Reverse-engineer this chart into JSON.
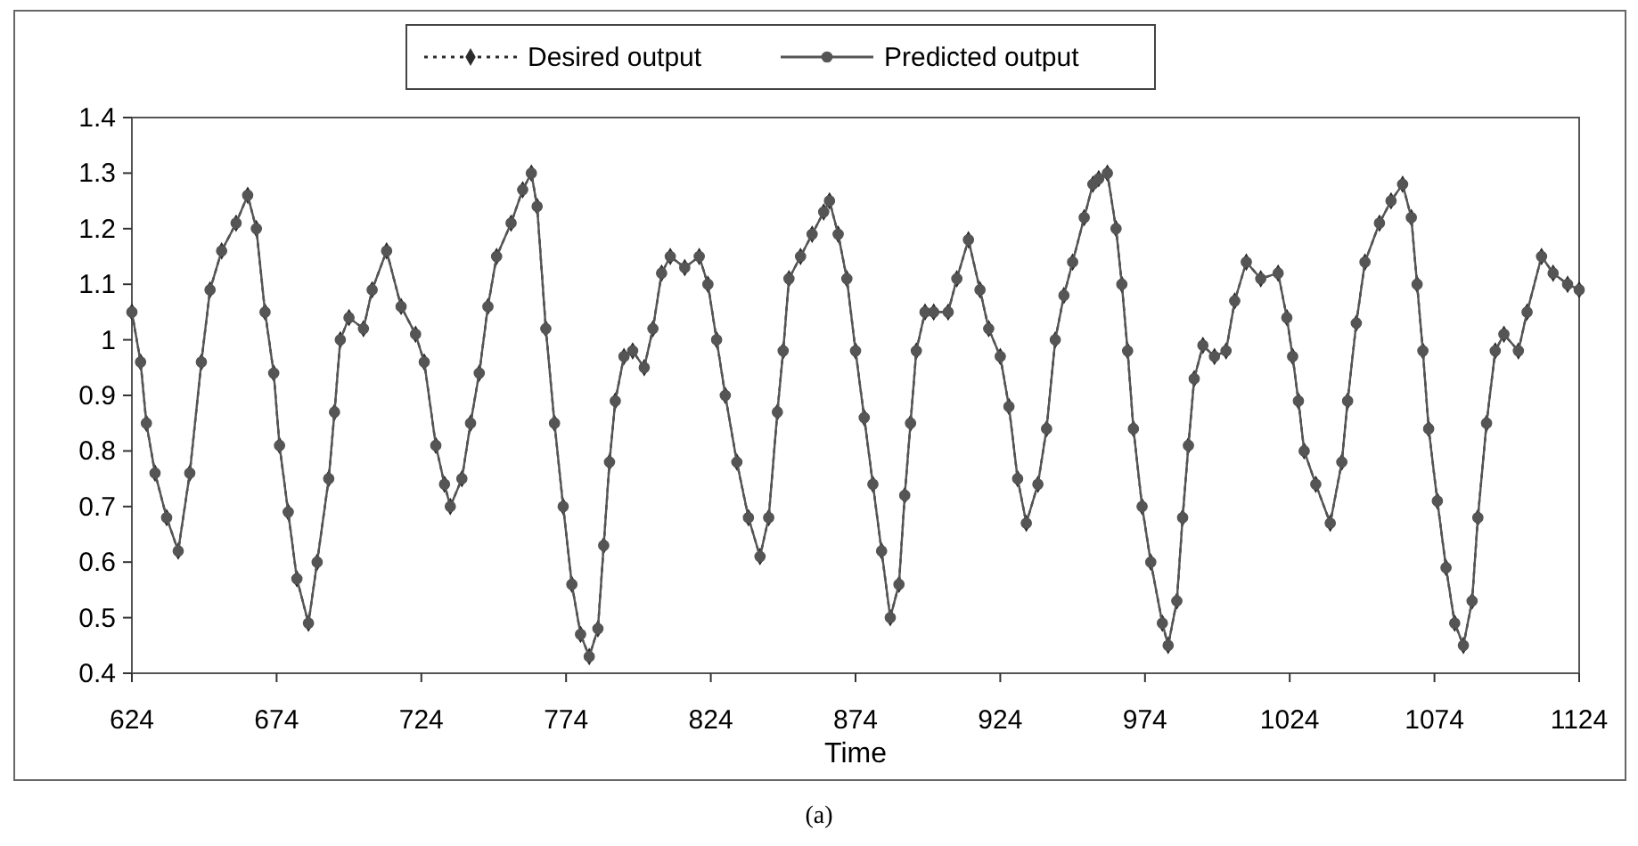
{
  "chart_data": {
    "type": "line",
    "xlabel": "Time",
    "annotations": [
      "(a)"
    ],
    "x": [
      624,
      627,
      629,
      632,
      636,
      640,
      644,
      648,
      651,
      655,
      660,
      664,
      667,
      670,
      673,
      675,
      678,
      681,
      685,
      688,
      692,
      694,
      696,
      699,
      704,
      707,
      712,
      717,
      722,
      725,
      729,
      732,
      734,
      738,
      741,
      744,
      747,
      750,
      755,
      759,
      762,
      764,
      767,
      770,
      773,
      776,
      779,
      782,
      785,
      787,
      789,
      791,
      794,
      797,
      801,
      804,
      807,
      810,
      815,
      820,
      823,
      826,
      829,
      833,
      837,
      841,
      844,
      847,
      849,
      851,
      855,
      859,
      863,
      865,
      868,
      871,
      874,
      877,
      880,
      883,
      886,
      889,
      891,
      893,
      895,
      898,
      901,
      906,
      909,
      913,
      917,
      920,
      924,
      927,
      930,
      933,
      937,
      940,
      943,
      946,
      949,
      953,
      956,
      958,
      961,
      964,
      966,
      968,
      970,
      973,
      976,
      980,
      982,
      985,
      987,
      989,
      991,
      994,
      998,
      1002,
      1005,
      1009,
      1014,
      1020,
      1023,
      1025,
      1027,
      1029,
      1033,
      1038,
      1042,
      1044,
      1047,
      1050,
      1055,
      1059,
      1063,
      1066,
      1068,
      1070,
      1072,
      1075,
      1078,
      1081,
      1084,
      1087,
      1089,
      1092,
      1095,
      1098,
      1103,
      1106,
      1111,
      1115,
      1120,
      1124
    ],
    "series": [
      {
        "name": "Desired output",
        "color": "#2b2b2b",
        "line_style": "dotted",
        "marker": "diamond",
        "values": [
          1.05,
          0.96,
          0.85,
          0.76,
          0.68,
          0.62,
          0.76,
          0.96,
          1.09,
          1.16,
          1.21,
          1.26,
          1.2,
          1.05,
          0.94,
          0.81,
          0.69,
          0.57,
          0.49,
          0.6,
          0.75,
          0.87,
          1.0,
          1.04,
          1.02,
          1.09,
          1.16,
          1.06,
          1.01,
          0.96,
          0.81,
          0.74,
          0.7,
          0.75,
          0.85,
          0.94,
          1.06,
          1.15,
          1.21,
          1.27,
          1.3,
          1.24,
          1.02,
          0.85,
          0.7,
          0.56,
          0.47,
          0.43,
          0.48,
          0.63,
          0.78,
          0.89,
          0.97,
          0.98,
          0.95,
          1.02,
          1.12,
          1.15,
          1.13,
          1.15,
          1.1,
          1.0,
          0.9,
          0.78,
          0.68,
          0.61,
          0.68,
          0.87,
          0.98,
          1.11,
          1.15,
          1.19,
          1.23,
          1.25,
          1.19,
          1.11,
          0.98,
          0.86,
          0.74,
          0.62,
          0.5,
          0.56,
          0.72,
          0.85,
          0.98,
          1.05,
          1.05,
          1.05,
          1.11,
          1.18,
          1.09,
          1.02,
          0.97,
          0.88,
          0.75,
          0.67,
          0.74,
          0.84,
          1.0,
          1.08,
          1.14,
          1.22,
          1.28,
          1.29,
          1.3,
          1.2,
          1.1,
          0.98,
          0.84,
          0.7,
          0.6,
          0.49,
          0.45,
          0.53,
          0.68,
          0.81,
          0.93,
          0.99,
          0.97,
          0.98,
          1.07,
          1.14,
          1.11,
          1.12,
          1.04,
          0.97,
          0.89,
          0.8,
          0.74,
          0.67,
          0.78,
          0.89,
          1.03,
          1.14,
          1.21,
          1.25,
          1.28,
          1.22,
          1.1,
          0.98,
          0.84,
          0.71,
          0.59,
          0.49,
          0.45,
          0.53,
          0.68,
          0.85,
          0.98,
          1.01,
          0.98,
          1.05,
          1.15,
          1.12,
          1.1,
          1.09
        ]
      },
      {
        "name": "Predicted output",
        "color": "#555555",
        "line_style": "solid",
        "marker": "circle",
        "values": [
          1.05,
          0.96,
          0.85,
          0.76,
          0.68,
          0.62,
          0.76,
          0.96,
          1.09,
          1.16,
          1.21,
          1.26,
          1.2,
          1.05,
          0.94,
          0.81,
          0.69,
          0.57,
          0.49,
          0.6,
          0.75,
          0.87,
          1.0,
          1.04,
          1.02,
          1.09,
          1.16,
          1.06,
          1.01,
          0.96,
          0.81,
          0.74,
          0.7,
          0.75,
          0.85,
          0.94,
          1.06,
          1.15,
          1.21,
          1.27,
          1.3,
          1.24,
          1.02,
          0.85,
          0.7,
          0.56,
          0.47,
          0.43,
          0.48,
          0.63,
          0.78,
          0.89,
          0.97,
          0.98,
          0.95,
          1.02,
          1.12,
          1.15,
          1.13,
          1.15,
          1.1,
          1.0,
          0.9,
          0.78,
          0.68,
          0.61,
          0.68,
          0.87,
          0.98,
          1.11,
          1.15,
          1.19,
          1.23,
          1.25,
          1.19,
          1.11,
          0.98,
          0.86,
          0.74,
          0.62,
          0.5,
          0.56,
          0.72,
          0.85,
          0.98,
          1.05,
          1.05,
          1.05,
          1.11,
          1.18,
          1.09,
          1.02,
          0.97,
          0.88,
          0.75,
          0.67,
          0.74,
          0.84,
          1.0,
          1.08,
          1.14,
          1.22,
          1.28,
          1.29,
          1.3,
          1.2,
          1.1,
          0.98,
          0.84,
          0.7,
          0.6,
          0.49,
          0.45,
          0.53,
          0.68,
          0.81,
          0.93,
          0.99,
          0.97,
          0.98,
          1.07,
          1.14,
          1.11,
          1.12,
          1.04,
          0.97,
          0.89,
          0.8,
          0.74,
          0.67,
          0.78,
          0.89,
          1.03,
          1.14,
          1.21,
          1.25,
          1.28,
          1.22,
          1.1,
          0.98,
          0.84,
          0.71,
          0.59,
          0.49,
          0.45,
          0.53,
          0.68,
          0.85,
          0.98,
          1.01,
          0.98,
          1.05,
          1.15,
          1.12,
          1.1,
          1.09
        ]
      }
    ],
    "xlim": [
      624,
      1124
    ],
    "xticks": [
      624,
      674,
      724,
      774,
      824,
      874,
      924,
      974,
      1024,
      1074,
      1124
    ],
    "ylim": [
      0.4,
      1.4
    ],
    "yticks": [
      0.4,
      0.5,
      0.6,
      0.7,
      0.8,
      0.9,
      1,
      1.1,
      1.2,
      1.3,
      1.4
    ],
    "grid": false,
    "legend": "top"
  }
}
